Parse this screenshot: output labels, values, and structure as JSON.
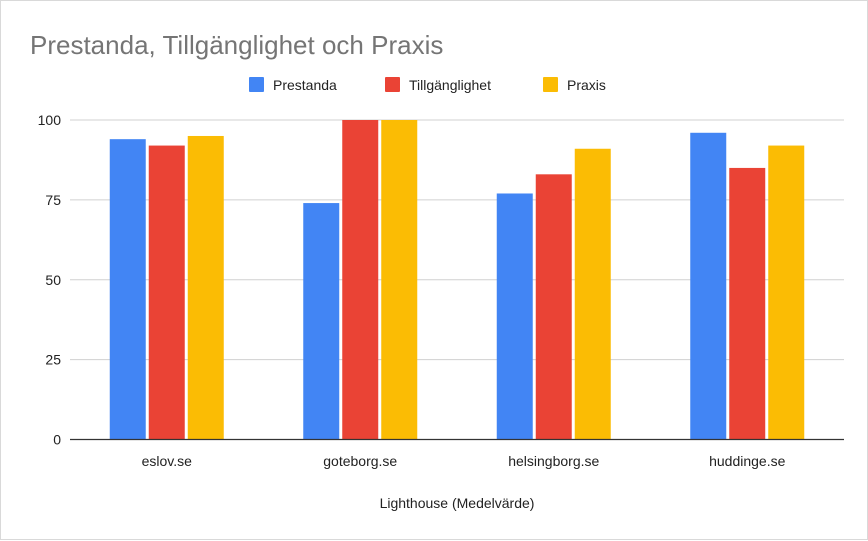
{
  "chart_data": {
    "type": "bar",
    "title": "Prestanda, Tillgänglighet och Praxis",
    "xlabel": "Lighthouse (Medelvärde)",
    "ylabel": "",
    "categories": [
      "eslov.se",
      "goteborg.se",
      "helsingborg.se",
      "huddinge.se"
    ],
    "series": [
      {
        "name": "Prestanda",
        "color": "#4285f4",
        "values": [
          94,
          74,
          77,
          96
        ]
      },
      {
        "name": "Tillgänglighet",
        "color": "#ea4335",
        "values": [
          92,
          100,
          83,
          85
        ]
      },
      {
        "name": "Praxis",
        "color": "#fbbc04",
        "values": [
          95,
          100,
          91,
          92
        ]
      }
    ],
    "ylim": [
      0,
      100
    ],
    "yticks": [
      "0",
      "25",
      "50",
      "75",
      "100"
    ],
    "grid": true,
    "legend_position": "top"
  }
}
